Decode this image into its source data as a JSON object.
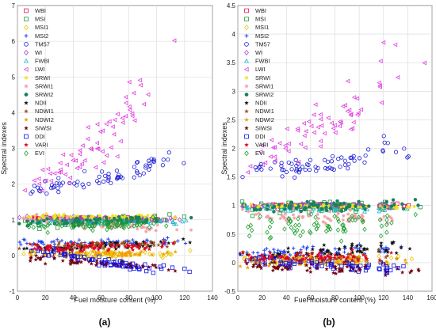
{
  "colors": {
    "WBI": "#e8104a",
    "MSI": "#1a9a3a",
    "MSI1": "#e8c800",
    "MSI2": "#2244ee",
    "TM57": "#1a1ad6",
    "WI": "#b040d0",
    "FWBI": "#20b8c8",
    "LWI": "#e040e0",
    "SRWI": "#f0e020",
    "SRWI1": "#f0a0a8",
    "SRWI2": "#1a8060",
    "NDII": "#111111",
    "NDWI1": "#a05020",
    "NDWI2": "#f0a000",
    "SIWSI": "#700010",
    "DDI": "#1010e0",
    "VARI": "#e00020",
    "EVI": "#20a030"
  },
  "chart_data": [
    {
      "panel_label": "(a)",
      "type": "scatter",
      "xlabel": "Fuel moisture content (%)",
      "ylabel": "Spectral indexes",
      "xlim": [
        0,
        140
      ],
      "ylim": [
        -1,
        7
      ],
      "x_ticks": [
        "0",
        "20",
        "40",
        "60",
        "80",
        "100",
        "120",
        "140"
      ],
      "y_ticks": [
        "-1",
        "0",
        "1",
        "2",
        "3",
        "4",
        "5",
        "6",
        "7"
      ],
      "grid": true,
      "legend_position": "top-left",
      "series": [
        {
          "name": "WBI",
          "marker": "square",
          "trend": [
            [
              0,
              1.05
            ],
            [
              130,
              1.0
            ]
          ],
          "spread": 0.02
        },
        {
          "name": "MSI",
          "marker": "square",
          "trend": [
            [
              0,
              0.85
            ],
            [
              40,
              0.95
            ],
            [
              130,
              1.05
            ]
          ],
          "spread": 0.07
        },
        {
          "name": "MSI1",
          "marker": "diamond",
          "trend": [
            [
              0,
              0.05
            ],
            [
              130,
              0.05
            ]
          ],
          "spread": 0.05
        },
        {
          "name": "MSI2",
          "marker": "plus",
          "trend": [
            [
              0,
              0.35
            ],
            [
              130,
              0.4
            ]
          ],
          "spread": 0.05
        },
        {
          "name": "TM57",
          "marker": "circle",
          "trend": [
            [
              0,
              1.7
            ],
            [
              20,
              1.9
            ],
            [
              50,
              2.1
            ],
            [
              80,
              2.3
            ],
            [
              105,
              2.7
            ],
            [
              130,
              2.7
            ]
          ],
          "spread": 0.12
        },
        {
          "name": "WI",
          "marker": "diamond",
          "trend": [
            [
              0,
              1.05
            ],
            [
              130,
              1.0
            ]
          ],
          "spread": 0.03
        },
        {
          "name": "FWBI",
          "marker": "triangle-up",
          "trend": [
            [
              0,
              0.95
            ],
            [
              130,
              0.95
            ]
          ],
          "spread": 0.04
        },
        {
          "name": "LWI",
          "marker": "triangle-left",
          "trend": [
            [
              0,
              1.5
            ],
            [
              20,
              2.2
            ],
            [
              40,
              2.6
            ],
            [
              60,
              3.1
            ],
            [
              80,
              4.0
            ],
            [
              100,
              5.3
            ],
            [
              110,
              5.8
            ],
            [
              130,
              6.5
            ]
          ],
          "spread": 0.35
        },
        {
          "name": "SRWI",
          "marker": "star",
          "trend": [
            [
              0,
              1.1
            ],
            [
              130,
              1.05
            ]
          ],
          "spread": 0.03
        },
        {
          "name": "SRWI1",
          "marker": "star",
          "trend": [
            [
              0,
              1.1
            ],
            [
              60,
              0.85
            ],
            [
              130,
              0.7
            ]
          ],
          "spread": 0.06
        },
        {
          "name": "SRWI2",
          "marker": "circle-filled",
          "trend": [
            [
              0,
              0.9
            ],
            [
              130,
              1.05
            ]
          ],
          "spread": 0.06
        },
        {
          "name": "NDII",
          "marker": "star-filled",
          "trend": [
            [
              0,
              0.15
            ],
            [
              130,
              0.4
            ]
          ],
          "spread": 0.05
        },
        {
          "name": "NDWI1",
          "marker": "star-filled",
          "trend": [
            [
              0,
              0.25
            ],
            [
              130,
              0.35
            ]
          ],
          "spread": 0.05
        },
        {
          "name": "NDWI2",
          "marker": "star-filled",
          "trend": [
            [
              0,
              0.05
            ],
            [
              130,
              0.05
            ]
          ],
          "spread": 0.04
        },
        {
          "name": "SIWSI",
          "marker": "star-filled",
          "trend": [
            [
              0,
              -0.05
            ],
            [
              130,
              -0.4
            ]
          ],
          "spread": 0.05
        },
        {
          "name": "DDI",
          "marker": "square",
          "trend": [
            [
              0,
              0.3
            ],
            [
              40,
              0.0
            ],
            [
              80,
              -0.3
            ],
            [
              130,
              -0.45
            ]
          ],
          "spread": 0.06
        },
        {
          "name": "VARI",
          "marker": "star-filled",
          "trend": [
            [
              0,
              0.2
            ],
            [
              130,
              0.3
            ]
          ],
          "spread": 0.06
        },
        {
          "name": "EVI",
          "marker": "diamond",
          "trend": [
            [
              0,
              0.8
            ],
            [
              130,
              0.9
            ]
          ],
          "spread": 0.08
        }
      ]
    },
    {
      "panel_label": "(b)",
      "type": "scatter",
      "xlabel": "Fuel moisture content (%)",
      "ylabel": "Spectral indexes",
      "xlim": [
        0,
        160
      ],
      "ylim": [
        -0.5,
        4.5
      ],
      "x_ticks": [
        "0",
        "20",
        "40",
        "60",
        "80",
        "100",
        "120",
        "140",
        "160"
      ],
      "y_ticks": [
        "-0.5",
        "0",
        "0.5",
        "1",
        "1.5",
        "2",
        "2.5",
        "3",
        "3.5",
        "4",
        "4.5"
      ],
      "grid": true,
      "legend_position": "top-left",
      "series": [
        {
          "name": "WBI",
          "marker": "square",
          "trend": [
            [
              0,
              1.0
            ],
            [
              155,
              0.98
            ]
          ],
          "spread": 0.02
        },
        {
          "name": "MSI",
          "marker": "square",
          "trend": [
            [
              0,
              0.95
            ],
            [
              155,
              1.0
            ]
          ],
          "spread": 0.05
        },
        {
          "name": "MSI1",
          "marker": "diamond",
          "trend": [
            [
              0,
              0.05
            ],
            [
              155,
              0.05
            ]
          ],
          "spread": 0.04
        },
        {
          "name": "MSI2",
          "marker": "plus",
          "trend": [
            [
              0,
              0.15
            ],
            [
              155,
              0.25
            ]
          ],
          "spread": 0.05
        },
        {
          "name": "TM57",
          "marker": "circle",
          "trend": [
            [
              0,
              1.5
            ],
            [
              20,
              1.6
            ],
            [
              60,
              1.7
            ],
            [
              100,
              1.8
            ],
            [
              120,
              2.0
            ],
            [
              155,
              1.9
            ]
          ],
          "spread": 0.08
        },
        {
          "name": "WI",
          "marker": "diamond",
          "trend": [
            [
              0,
              1.0
            ],
            [
              155,
              1.0
            ]
          ],
          "spread": 0.02
        },
        {
          "name": "FWBI",
          "marker": "triangle-up",
          "trend": [
            [
              0,
              0.95
            ],
            [
              155,
              0.95
            ]
          ],
          "spread": 0.03
        },
        {
          "name": "LWI",
          "marker": "triangle-left",
          "trend": [
            [
              0,
              1.4
            ],
            [
              20,
              1.9
            ],
            [
              50,
              2.2
            ],
            [
              80,
              2.5
            ],
            [
              100,
              2.7
            ],
            [
              120,
              3.3
            ],
            [
              155,
              3.8
            ]
          ],
          "spread": 0.2
        },
        {
          "name": "SRWI",
          "marker": "star",
          "trend": [
            [
              0,
              1.0
            ],
            [
              155,
              0.98
            ]
          ],
          "spread": 0.02
        },
        {
          "name": "SRWI1",
          "marker": "star",
          "trend": [
            [
              0,
              0.85
            ],
            [
              155,
              0.75
            ]
          ],
          "spread": 0.06
        },
        {
          "name": "SRWI2",
          "marker": "circle-filled",
          "trend": [
            [
              0,
              0.95
            ],
            [
              155,
              1.05
            ]
          ],
          "spread": 0.05
        },
        {
          "name": "NDII",
          "marker": "star-filled",
          "trend": [
            [
              0,
              0.1
            ],
            [
              155,
              0.3
            ]
          ],
          "spread": 0.05
        },
        {
          "name": "NDWI1",
          "marker": "star-filled",
          "trend": [
            [
              0,
              0.0
            ],
            [
              155,
              0.1
            ]
          ],
          "spread": 0.05
        },
        {
          "name": "NDWI2",
          "marker": "star-filled",
          "trend": [
            [
              0,
              0.0
            ],
            [
              155,
              0.05
            ]
          ],
          "spread": 0.04
        },
        {
          "name": "SIWSI",
          "marker": "star-filled",
          "trend": [
            [
              0,
              -0.05
            ],
            [
              155,
              -0.15
            ]
          ],
          "spread": 0.04
        },
        {
          "name": "DDI",
          "marker": "square",
          "trend": [
            [
              0,
              0.1
            ],
            [
              80,
              -0.05
            ],
            [
              155,
              -0.15
            ]
          ],
          "spread": 0.05
        },
        {
          "name": "VARI",
          "marker": "star-filled",
          "trend": [
            [
              0,
              0.1
            ],
            [
              155,
              0.1
            ]
          ],
          "spread": 0.05
        },
        {
          "name": "EVI",
          "marker": "diamond",
          "trend": [
            [
              0,
              0.6
            ],
            [
              155,
              0.7
            ]
          ],
          "spread": 0.12
        }
      ]
    }
  ]
}
